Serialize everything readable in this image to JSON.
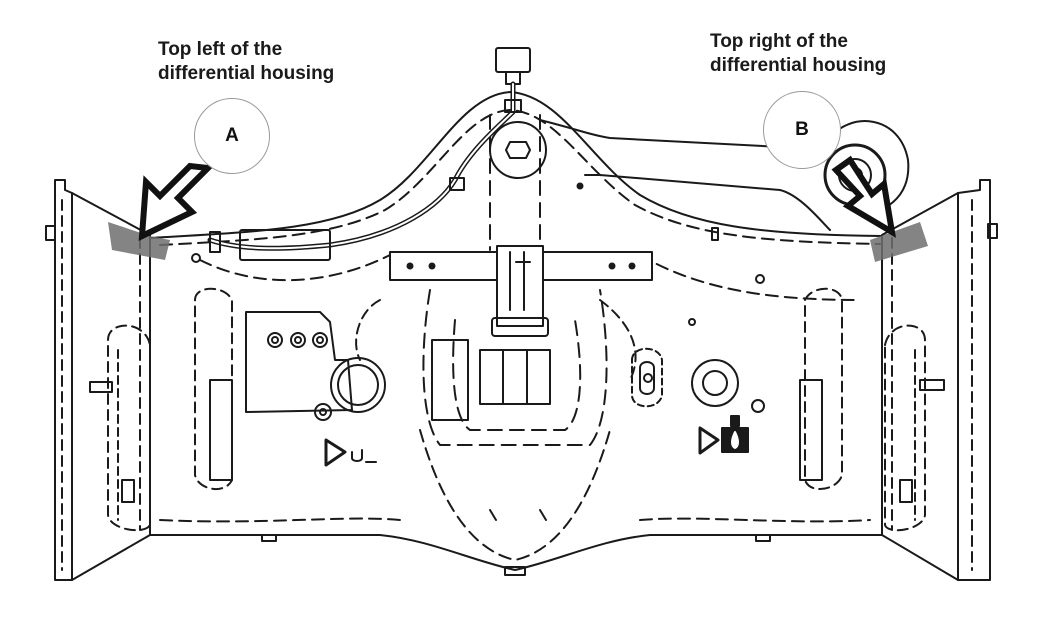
{
  "labels": {
    "top_left_line1": "Top left of the",
    "top_left_line2": "differential housing",
    "top_right_line1": "Top right of the",
    "top_right_line2": "differential housing"
  },
  "callouts": {
    "a": "A",
    "b": "B"
  },
  "colors": {
    "line": "#1a1a1a",
    "highlight": "#6e6e6e",
    "background": "#ffffff"
  }
}
